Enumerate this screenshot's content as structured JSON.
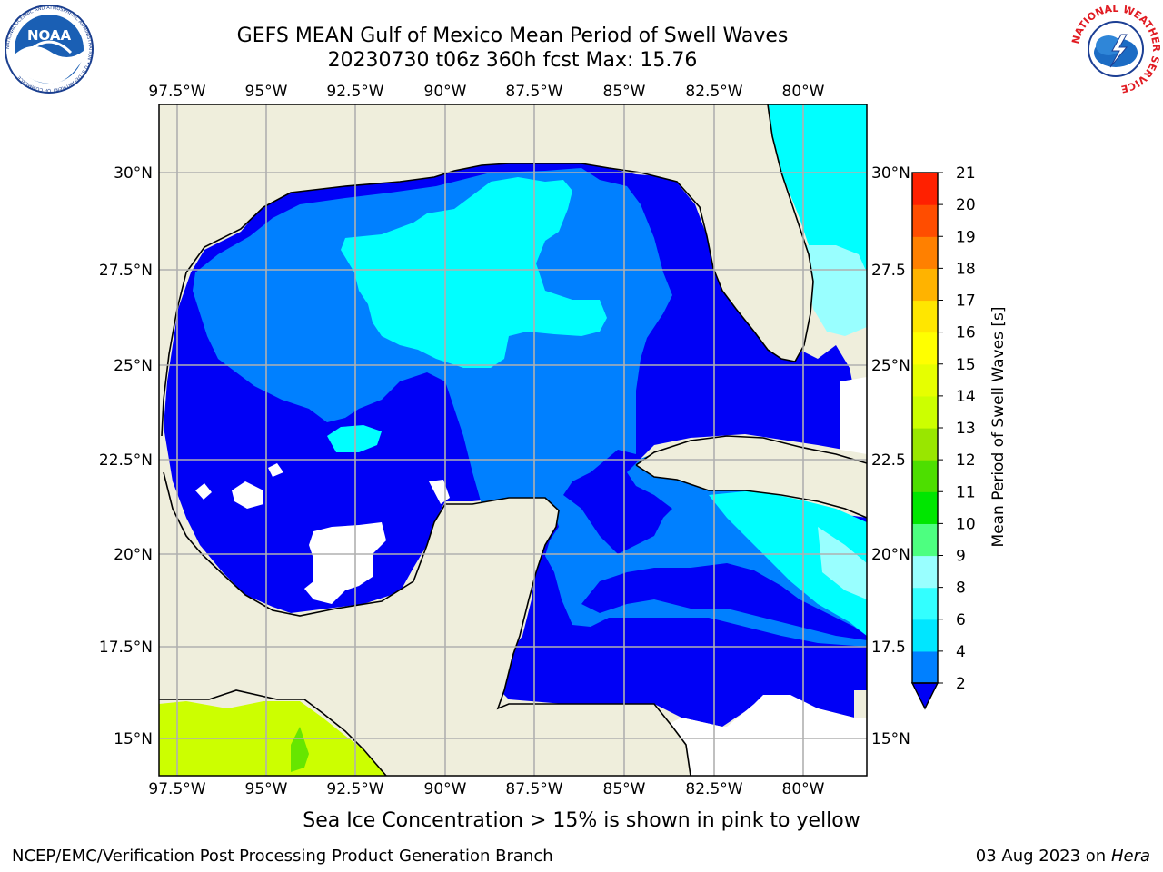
{
  "title": {
    "line1": "GEFS MEAN Gulf of Mexico Mean Period of Swell Waves",
    "line2": "20230730 t06z 360h fcst   Max: 15.76"
  },
  "map": {
    "lon_ticks": [
      "97.5°W",
      "95°W",
      "92.5°W",
      "90°W",
      "87.5°W",
      "85°W",
      "82.5°W",
      "80°W"
    ],
    "lat_ticks_left": [
      "30°N",
      "27.5°N",
      "25°N",
      "22.5°N",
      "20°N",
      "17.5°N",
      "15°N"
    ],
    "lat_ticks_right": [
      "30°N",
      "27.5",
      "25°N",
      "22.5",
      "20°N",
      "17.5",
      "15°N"
    ],
    "colors": {
      "land": "#efeedc",
      "ocean_dark": "#0000f6",
      "ocean_mid": "#0080ff",
      "ocean_light": "#00ffff",
      "ocean_pale": "#99ffff",
      "yellowgreen": "#ccff00",
      "gridline": "#b0b0b0"
    }
  },
  "colorbar": {
    "label": "Mean Period of Swell Waves [s]",
    "ticks": [
      "2",
      "4",
      "6",
      "8",
      "9",
      "10",
      "11",
      "12",
      "13",
      "14",
      "15",
      "16",
      "17",
      "18",
      "19",
      "20",
      "21"
    ],
    "colors": [
      "#0080ff",
      "#00e6ff",
      "#33ffff",
      "#99ffff",
      "#4dff80",
      "#00e600",
      "#4ddf00",
      "#99e600",
      "#ccff00",
      "#e6ff00",
      "#ffff00",
      "#ffe600",
      "#ffb300",
      "#ff8000",
      "#ff4d00",
      "#ff2000",
      "#ff0000"
    ],
    "extend_color": "#0000f6"
  },
  "footer": {
    "note": "Sea Ice Concentration > 15% is shown in pink to yellow",
    "credit": "NCEP/EMC/Verification Post Processing Product Generation Branch",
    "date": "03 Aug 2023 on",
    "host": "Hera"
  },
  "logos": {
    "noaa_text": "NOAA",
    "noaa_ring": "NATIONAL OCEANIC AND ATMOSPHERIC ADMINISTRATION • U.S. DEPARTMENT OF COMMERCE",
    "nws_ring": "NATIONAL WEATHER SERVICE"
  }
}
